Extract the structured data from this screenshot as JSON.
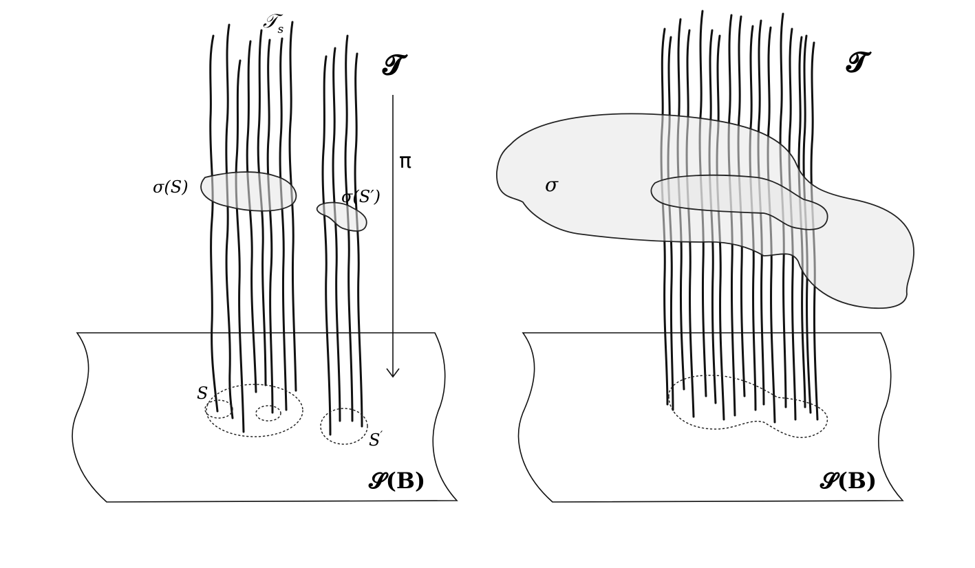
{
  "left_panel": {
    "total_space_label": "𝓣",
    "fiber_group_label": "𝒯",
    "fiber_group_subscript": "s",
    "projection_label": "π",
    "section_label_S": "σ(S)",
    "section_label_S_prime": "σ(S′)",
    "open_set_S_label": "S",
    "open_set_S_prime_label": "S",
    "prime_mark": "′",
    "base_label": "𝓢(𝐁)"
  },
  "right_panel": {
    "total_space_label": "𝓣",
    "section_label": "σ",
    "base_label": "𝓢(𝐁)"
  }
}
